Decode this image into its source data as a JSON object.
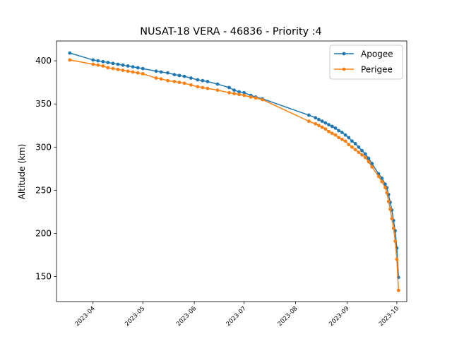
{
  "chart_data": {
    "type": "line",
    "title": "NUSAT-18 VERA - 46836 - Priority :4",
    "xlabel": "",
    "ylabel": "Altitude (km)",
    "x_axis_type": "date",
    "xlim": [
      "2023-03-10",
      "2023-10-07"
    ],
    "ylim": [
      121,
      423
    ],
    "x_ticks": [
      "2023-04",
      "2023-05",
      "2023-06",
      "2023-07",
      "2023-08",
      "2023-09",
      "2023-10"
    ],
    "y_ticks": [
      150,
      200,
      250,
      300,
      350,
      400
    ],
    "grid": false,
    "legend": {
      "position": "top-right"
    },
    "series": [
      {
        "name": "Apogee",
        "color": "#1f77b4",
        "marker": "circle",
        "points": [
          [
            "2023-03-18",
            409
          ],
          [
            "2023-04-01",
            401
          ],
          [
            "2023-04-04",
            400
          ],
          [
            "2023-04-07",
            399
          ],
          [
            "2023-04-10",
            398
          ],
          [
            "2023-04-13",
            397
          ],
          [
            "2023-04-16",
            396
          ],
          [
            "2023-04-19",
            395
          ],
          [
            "2023-04-22",
            394
          ],
          [
            "2023-04-25",
            393
          ],
          [
            "2023-04-28",
            392
          ],
          [
            "2023-05-01",
            391
          ],
          [
            "2023-05-09",
            388
          ],
          [
            "2023-05-12",
            387
          ],
          [
            "2023-05-16",
            386
          ],
          [
            "2023-05-20",
            384
          ],
          [
            "2023-05-23",
            383
          ],
          [
            "2023-05-26",
            382
          ],
          [
            "2023-05-30",
            380
          ],
          [
            "2023-06-03",
            378
          ],
          [
            "2023-06-06",
            377
          ],
          [
            "2023-06-09",
            376
          ],
          [
            "2023-06-15",
            373
          ],
          [
            "2023-06-22",
            369
          ],
          [
            "2023-06-25",
            366
          ],
          [
            "2023-06-28",
            364
          ],
          [
            "2023-07-01",
            363
          ],
          [
            "2023-07-05",
            360
          ],
          [
            "2023-07-08",
            358
          ],
          [
            "2023-07-12",
            356
          ],
          [
            "2023-08-09",
            337
          ],
          [
            "2023-08-13",
            334
          ],
          [
            "2023-08-15",
            332
          ],
          [
            "2023-08-17",
            330
          ],
          [
            "2023-08-19",
            328
          ],
          [
            "2023-08-21",
            326
          ],
          [
            "2023-08-23",
            324
          ],
          [
            "2023-08-25",
            322
          ],
          [
            "2023-08-27",
            319
          ],
          [
            "2023-08-29",
            317
          ],
          [
            "2023-08-31",
            314
          ],
          [
            "2023-09-02",
            311
          ],
          [
            "2023-09-04",
            307
          ],
          [
            "2023-09-06",
            304
          ],
          [
            "2023-09-08",
            300
          ],
          [
            "2023-09-10",
            296
          ],
          [
            "2023-09-12",
            292
          ],
          [
            "2023-09-14",
            287
          ],
          [
            "2023-09-16",
            281
          ],
          [
            "2023-09-20",
            269
          ],
          [
            "2023-09-22",
            264
          ],
          [
            "2023-09-24",
            257
          ],
          [
            "2023-09-25",
            253
          ],
          [
            "2023-09-26",
            245
          ],
          [
            "2023-09-27",
            236
          ],
          [
            "2023-09-28",
            227
          ],
          [
            "2023-09-29",
            215
          ],
          [
            "2023-09-30",
            203
          ],
          [
            "2023-10-01",
            183
          ],
          [
            "2023-10-02",
            149
          ]
        ]
      },
      {
        "name": "Perigee",
        "color": "#ff7f0e",
        "marker": "circle",
        "points": [
          [
            "2023-03-18",
            401
          ],
          [
            "2023-04-01",
            396
          ],
          [
            "2023-04-04",
            395
          ],
          [
            "2023-04-07",
            394
          ],
          [
            "2023-04-10",
            392
          ],
          [
            "2023-04-13",
            391
          ],
          [
            "2023-04-16",
            390
          ],
          [
            "2023-04-19",
            389
          ],
          [
            "2023-04-22",
            388
          ],
          [
            "2023-04-25",
            387
          ],
          [
            "2023-04-28",
            386
          ],
          [
            "2023-05-01",
            385
          ],
          [
            "2023-05-09",
            380
          ],
          [
            "2023-05-12",
            379
          ],
          [
            "2023-05-16",
            377
          ],
          [
            "2023-05-20",
            376
          ],
          [
            "2023-05-23",
            375
          ],
          [
            "2023-05-26",
            374
          ],
          [
            "2023-05-30",
            372
          ],
          [
            "2023-06-03",
            370
          ],
          [
            "2023-06-06",
            369
          ],
          [
            "2023-06-09",
            368
          ],
          [
            "2023-06-15",
            366
          ],
          [
            "2023-06-22",
            363
          ],
          [
            "2023-06-25",
            362
          ],
          [
            "2023-06-28",
            361
          ],
          [
            "2023-07-01",
            360
          ],
          [
            "2023-07-05",
            358
          ],
          [
            "2023-07-08",
            357
          ],
          [
            "2023-07-12",
            355
          ],
          [
            "2023-08-09",
            330
          ],
          [
            "2023-08-13",
            327
          ],
          [
            "2023-08-15",
            325
          ],
          [
            "2023-08-17",
            323
          ],
          [
            "2023-08-19",
            321
          ],
          [
            "2023-08-21",
            318
          ],
          [
            "2023-08-23",
            316
          ],
          [
            "2023-08-25",
            314
          ],
          [
            "2023-08-27",
            311
          ],
          [
            "2023-08-29",
            309
          ],
          [
            "2023-08-31",
            307
          ],
          [
            "2023-09-02",
            303
          ],
          [
            "2023-09-04",
            300
          ],
          [
            "2023-09-06",
            297
          ],
          [
            "2023-09-08",
            294
          ],
          [
            "2023-09-10",
            291
          ],
          [
            "2023-09-12",
            288
          ],
          [
            "2023-09-14",
            283
          ],
          [
            "2023-09-16",
            277
          ],
          [
            "2023-09-20",
            266
          ],
          [
            "2023-09-22",
            260
          ],
          [
            "2023-09-24",
            253
          ],
          [
            "2023-09-25",
            247
          ],
          [
            "2023-09-26",
            237
          ],
          [
            "2023-09-27",
            228
          ],
          [
            "2023-09-28",
            217
          ],
          [
            "2023-09-29",
            206
          ],
          [
            "2023-09-30",
            191
          ],
          [
            "2023-10-01",
            170
          ],
          [
            "2023-10-02",
            134
          ]
        ]
      }
    ]
  }
}
